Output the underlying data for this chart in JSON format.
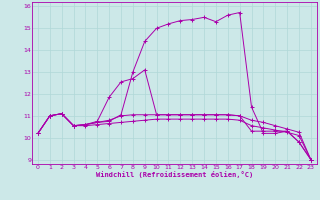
{
  "background_color": "#cce8e8",
  "line_color": "#aa00aa",
  "xlabel": "Windchill (Refroidissement éolien,°C)",
  "xlabel_color": "#aa00aa",
  "xlim": [
    -0.5,
    23.5
  ],
  "ylim": [
    8.8,
    16.2
  ],
  "xticks": [
    0,
    1,
    2,
    3,
    4,
    5,
    6,
    7,
    8,
    9,
    10,
    11,
    12,
    13,
    14,
    15,
    16,
    17,
    18,
    19,
    20,
    21,
    22,
    23
  ],
  "yticks": [
    9,
    10,
    11,
    12,
    13,
    14,
    15,
    16
  ],
  "grid_color": "#b0d8d8",
  "line1_x": [
    0,
    1,
    2,
    3,
    4,
    5,
    6,
    7,
    8,
    9,
    10,
    11,
    12,
    13,
    14,
    15,
    16,
    17,
    18,
    19,
    20,
    21,
    22,
    23
  ],
  "line1_y": [
    10.2,
    11.0,
    11.1,
    10.55,
    10.55,
    10.6,
    10.65,
    10.7,
    10.75,
    10.8,
    10.85,
    10.85,
    10.85,
    10.85,
    10.85,
    10.85,
    10.85,
    10.8,
    10.55,
    10.45,
    10.35,
    10.25,
    10.1,
    9.0
  ],
  "line2_x": [
    0,
    1,
    2,
    3,
    4,
    5,
    6,
    7,
    8,
    9,
    10,
    11,
    12,
    13,
    14,
    15,
    16,
    17,
    18,
    19,
    20,
    21,
    22,
    23
  ],
  "line2_y": [
    10.2,
    11.0,
    11.1,
    10.55,
    10.6,
    10.7,
    10.8,
    11.0,
    11.05,
    11.05,
    11.05,
    11.05,
    11.05,
    11.05,
    11.05,
    11.05,
    11.05,
    11.0,
    10.8,
    10.7,
    10.55,
    10.4,
    10.25,
    9.0
  ],
  "line3_x": [
    0,
    1,
    2,
    3,
    4,
    5,
    6,
    7,
    8,
    9,
    10,
    11,
    12,
    13,
    14,
    15,
    16,
    17,
    18,
    19,
    20,
    21,
    22,
    23
  ],
  "line3_y": [
    10.2,
    11.0,
    11.1,
    10.55,
    10.6,
    10.75,
    11.85,
    12.55,
    12.7,
    13.1,
    11.05,
    11.05,
    11.05,
    11.05,
    11.05,
    11.05,
    11.05,
    11.0,
    10.3,
    10.3,
    10.3,
    10.3,
    9.8,
    9.0
  ],
  "line4_x": [
    0,
    1,
    2,
    3,
    4,
    5,
    6,
    7,
    8,
    9,
    10,
    11,
    12,
    13,
    14,
    15,
    16,
    17,
    18,
    19,
    20,
    21,
    22,
    23
  ],
  "line4_y": [
    10.2,
    11.0,
    11.1,
    10.55,
    10.6,
    10.7,
    10.75,
    11.05,
    13.0,
    14.4,
    15.0,
    15.2,
    15.35,
    15.4,
    15.5,
    15.3,
    15.6,
    15.72,
    11.4,
    10.2,
    10.2,
    10.3,
    9.8,
    9.0
  ]
}
